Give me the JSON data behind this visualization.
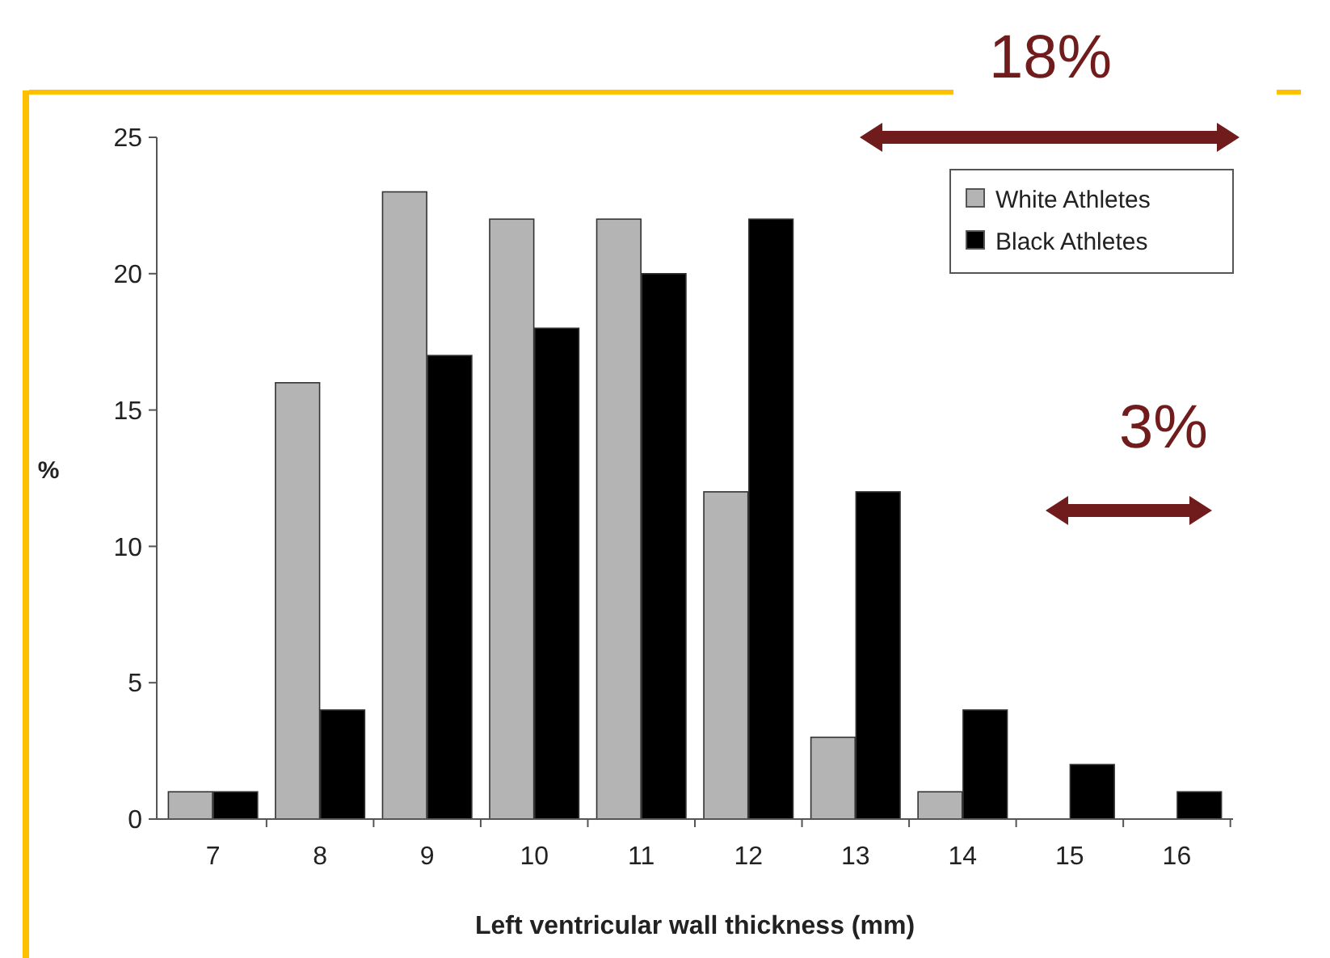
{
  "chart_data": {
    "type": "bar",
    "xlabel": "Left ventricular wall thickness (mm)",
    "ylabel": "%",
    "categories": [
      "7",
      "8",
      "9",
      "10",
      "11",
      "12",
      "13",
      "14",
      "15",
      "16"
    ],
    "series": [
      {
        "name": "White Athletes",
        "color": "#b4b4b4",
        "values": [
          1,
          16,
          23,
          22,
          22,
          12,
          3,
          1,
          0,
          0
        ]
      },
      {
        "name": "Black Athletes",
        "color": "#000000",
        "values": [
          1,
          4,
          17,
          18,
          20,
          22,
          12,
          4,
          2,
          1
        ]
      }
    ],
    "ylim": [
      0,
      25
    ],
    "yticks": [
      0,
      5,
      10,
      15,
      20,
      25
    ],
    "grid": false,
    "legend": "top right",
    "annotations": [
      "18%",
      "3%"
    ]
  }
}
